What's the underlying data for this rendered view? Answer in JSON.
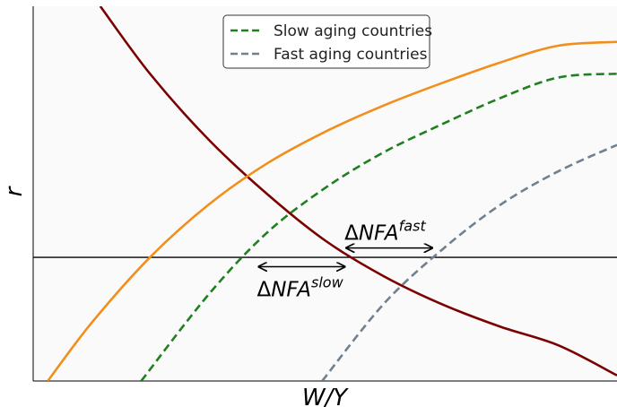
{
  "chart_data": {
    "type": "line",
    "title": "",
    "xlabel": "W/Y",
    "ylabel": "r",
    "xlim": [
      0,
      10
    ],
    "ylim": [
      0,
      10
    ],
    "grid": false,
    "legend_position": "top-center",
    "reference_line_y": 3.3,
    "series": [
      {
        "key": "demand",
        "color": "#7b0000",
        "style": "solid",
        "x": [
          1.15,
          2.0,
          3.0,
          4.0,
          5.0,
          6.0,
          7.0,
          8.0,
          9.0,
          10.0
        ],
        "y": [
          10.0,
          8.2,
          6.45,
          5.0,
          3.75,
          2.8,
          2.05,
          1.45,
          0.95,
          0.15
        ]
      },
      {
        "key": "supply_world",
        "color": "#f28e1c",
        "style": "solid",
        "x": [
          0.25,
          1.0,
          2.0,
          3.0,
          4.0,
          5.0,
          6.0,
          7.0,
          8.0,
          9.0,
          10.0
        ],
        "y": [
          0.0,
          1.55,
          3.3,
          4.7,
          5.8,
          6.65,
          7.35,
          7.95,
          8.5,
          8.95,
          9.05
        ]
      },
      {
        "name": "Slow aging countries",
        "key": "supply_slow",
        "color": "#208020",
        "style": "dashed",
        "x": [
          1.85,
          3.0,
          4.0,
          5.0,
          6.0,
          7.0,
          8.0,
          9.0,
          10.0
        ],
        "y": [
          0.0,
          2.3,
          3.95,
          5.15,
          6.1,
          6.85,
          7.55,
          8.1,
          8.2
        ]
      },
      {
        "name": "Fast aging countries",
        "key": "supply_fast",
        "color": "#708090",
        "style": "dashed",
        "x": [
          4.95,
          6.0,
          7.0,
          8.0,
          9.0,
          10.0
        ],
        "y": [
          0.0,
          2.05,
          3.5,
          4.7,
          5.6,
          6.3
        ]
      }
    ],
    "annotations": [
      {
        "label_base": "ΔNFA",
        "label_sup": "slow",
        "x_from": 3.85,
        "x_to": 5.35,
        "y": 3.05
      },
      {
        "label_base": "ΔNFA",
        "label_sup": "fast",
        "x_from": 5.35,
        "x_to": 6.85,
        "y": 3.55
      }
    ]
  }
}
